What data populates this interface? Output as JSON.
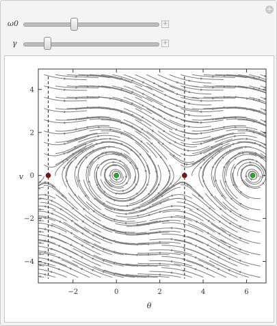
{
  "controls": {
    "sliders": [
      {
        "label": "ω0",
        "value_fraction": 0.37
      },
      {
        "label": "γ",
        "value_fraction": 0.16
      }
    ],
    "corner_button": "+",
    "plus_button": "+"
  },
  "chart_data": {
    "type": "streamplot",
    "xlabel": "θ",
    "ylabel": "v",
    "xlim": [
      -3.6,
      6.9
    ],
    "ylim": [
      -5.0,
      4.95
    ],
    "xticks": [
      -2,
      0,
      2,
      4,
      6
    ],
    "yticks": [
      -4,
      -2,
      0,
      2,
      4
    ],
    "xtick_labels": [
      "−2",
      "0",
      "2",
      "4",
      "6"
    ],
    "ytick_labels": [
      "−4",
      "−2",
      "0",
      "2",
      "4"
    ],
    "separatrix_x": [
      -3.14159,
      3.14159
    ],
    "fixed_points": [
      {
        "x": -3.14159,
        "y": 0,
        "kind": "saddle",
        "color": "#8b0e0e"
      },
      {
        "x": 0,
        "y": 0,
        "kind": "stable",
        "color": "#22aa22"
      },
      {
        "x": 3.14159,
        "y": 0,
        "kind": "saddle",
        "color": "#8b0e0e"
      },
      {
        "x": 6.28319,
        "y": 0,
        "kind": "stable",
        "color": "#22aa22"
      }
    ],
    "stream_color": "#7a7a7a",
    "grid": false
  }
}
